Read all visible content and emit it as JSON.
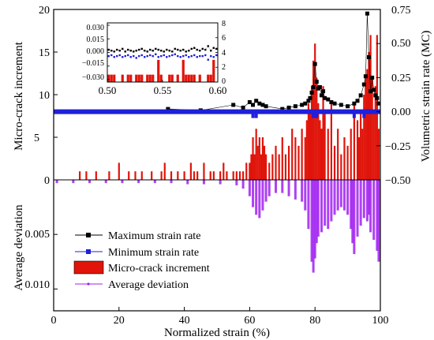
{
  "chart_data": {
    "type": "bar",
    "xlabel": "Normalized strain (%)",
    "x_ticks": [
      "0",
      "20",
      "40",
      "60",
      "80",
      "100"
    ],
    "xlim": [
      0,
      100
    ],
    "upper_left_axis": {
      "label": "Micro-crack increment",
      "ylim": [
        0,
        20
      ],
      "ticks": [
        "0",
        "5",
        "10",
        "15",
        "20"
      ]
    },
    "upper_right_axis": {
      "label": "Volumetric strain rate (MC)",
      "ylim": [
        -0.5,
        0.75
      ],
      "ticks": [
        "−0.50",
        "−0.25",
        "0.00",
        "0.25",
        "0.50",
        "0.75"
      ]
    },
    "lower_left_axis": {
      "label": "Average deviation",
      "ylim": [
        0,
        0.012
      ],
      "ticks": [
        "0.005",
        "0.010"
      ]
    },
    "inset": {
      "xlim": [
        0.5,
        0.6
      ],
      "x_ticks": [
        "0.50",
        "0.55",
        "0.60"
      ],
      "left_ticks": [
        "−0.030",
        "−0.015",
        "0.000",
        "0.015",
        "0.030"
      ],
      "right_ticks": [
        "0",
        "2",
        "4",
        "6",
        "8"
      ],
      "max_rate": [
        0.003,
        0.002,
        0.001,
        0.003,
        0.002,
        0.004,
        0.001,
        0.003,
        0.002,
        0.001,
        0.002,
        0.003,
        0.004,
        0.002,
        0.001,
        0.003,
        0.002,
        0.004,
        0.003,
        0.002,
        0.001,
        0.003,
        0.002,
        0.001,
        0.004,
        0.003,
        0.002,
        0.003,
        0.001,
        0.002,
        0.004,
        0.005,
        0.003,
        0.002,
        0.004,
        0.003,
        0.007,
        0.002,
        0.005,
        0.004
      ],
      "min_rate": [
        -0.004,
        -0.003,
        -0.005,
        -0.004,
        -0.003,
        -0.005,
        -0.004,
        -0.003,
        -0.005,
        -0.004,
        -0.006,
        -0.004,
        -0.003,
        -0.005,
        -0.004,
        -0.003,
        -0.004,
        -0.002,
        -0.005,
        -0.004,
        -0.003,
        -0.005,
        -0.004,
        -0.003,
        -0.002,
        -0.004,
        -0.005,
        -0.004,
        -0.003,
        -0.005,
        -0.004,
        -0.003,
        -0.005,
        -0.004,
        -0.004,
        -0.003,
        -0.008,
        -0.004,
        -0.005,
        -0.003
      ],
      "increments": [
        1,
        1,
        1,
        0,
        0,
        1,
        0,
        1,
        1,
        0,
        1,
        1,
        1,
        0,
        1,
        1,
        1,
        0,
        3,
        1,
        0,
        0,
        1,
        1,
        0,
        1,
        0,
        3,
        1,
        1,
        1,
        1,
        0,
        1,
        0,
        0,
        1,
        1,
        3,
        0
      ]
    },
    "series": [
      {
        "name": "Maximum strain rate",
        "color": "#000000",
        "marker": "square",
        "x": [
          35,
          45,
          55,
          58,
          60,
          61,
          62,
          63,
          64,
          65,
          70,
          72,
          74,
          76,
          77,
          78,
          78.5,
          79,
          79.5,
          80,
          80.5,
          81,
          81.5,
          82,
          82.5,
          83,
          84,
          85,
          86,
          88,
          90,
          92,
          93,
          94,
          95,
          95.5,
          96,
          96.5,
          97,
          97.5,
          98,
          98.5,
          99,
          99.5
        ],
        "y": [
          0.02,
          0.01,
          0.05,
          0.03,
          0.07,
          0.05,
          0.08,
          0.06,
          0.05,
          0.04,
          0.02,
          0.03,
          0.04,
          0.05,
          0.06,
          0.08,
          0.1,
          0.14,
          0.18,
          0.35,
          0.22,
          0.17,
          0.18,
          0.12,
          0.15,
          0.1,
          0.09,
          0.07,
          0.06,
          0.05,
          0.04,
          0.06,
          0.08,
          0.12,
          0.2,
          0.26,
          0.72,
          0.4,
          0.15,
          0.25,
          0.16,
          0.12,
          0.1,
          0.06
        ]
      },
      {
        "name": "Minimum strain rate",
        "color": "#1f1fdc",
        "marker": "square",
        "x": [],
        "y": []
      },
      {
        "name": "Micro-crack increment",
        "color": "#e0140a",
        "x": [
          8,
          10,
          13,
          17,
          20,
          23,
          25,
          27,
          30,
          33,
          34,
          36,
          38,
          40,
          42,
          43,
          44,
          46,
          48,
          49,
          51,
          52,
          53,
          55,
          56,
          57,
          58,
          59,
          60,
          60.5,
          61,
          61.5,
          62,
          62.5,
          63,
          63.5,
          64,
          64.5,
          65,
          66,
          67,
          68,
          69,
          70,
          71,
          72,
          73,
          74,
          75,
          76,
          77,
          77.5,
          78,
          78.5,
          79,
          79.5,
          80,
          80.5,
          81,
          81.5,
          82,
          82.5,
          83,
          84,
          85,
          86,
          87,
          88,
          89,
          90,
          91,
          92,
          93,
          93.5,
          94,
          94.5,
          95,
          95.5,
          96,
          96.5,
          97,
          97.5,
          98,
          98.5,
          99,
          99.5
        ],
        "y": [
          1,
          1,
          1,
          1,
          2,
          1,
          1,
          1,
          1,
          1,
          2,
          1,
          1,
          1,
          2,
          1,
          1,
          2,
          1,
          1,
          1,
          2,
          1,
          1,
          1,
          1,
          1,
          2,
          2,
          3,
          5,
          3,
          6,
          4,
          5,
          3,
          5,
          4,
          3,
          2,
          3,
          4,
          3,
          5,
          3,
          4,
          6,
          5,
          4,
          6,
          5,
          7,
          9,
          8,
          11,
          14,
          16,
          12,
          9,
          7,
          6,
          11,
          8,
          6,
          9,
          4,
          6,
          3,
          5,
          4,
          6,
          9,
          7,
          5,
          8,
          6,
          10,
          12,
          13,
          15,
          17,
          12,
          8,
          11,
          17,
          6
        ]
      },
      {
        "name": "Average deviation",
        "color": "#a020f0",
        "x": [
          1,
          6,
          11,
          16,
          21,
          26,
          31,
          36,
          41,
          46,
          51,
          56,
          58,
          60,
          61,
          62,
          63,
          64,
          65,
          66,
          68,
          70,
          72,
          74,
          76,
          77,
          78,
          79,
          79.5,
          80,
          80.5,
          81,
          82,
          83,
          84,
          85,
          86,
          87,
          88,
          89,
          90,
          91,
          91.5,
          92,
          93,
          94,
          95,
          96,
          96.5,
          97,
          98,
          99,
          99.5
        ],
        "y": [
          0.0003,
          0.0003,
          0.0003,
          0.0003,
          0.0003,
          0.0003,
          0.0003,
          0.0003,
          0.0004,
          0.0004,
          0.0004,
          0.0005,
          0.0008,
          0.0015,
          0.0025,
          0.0032,
          0.0035,
          0.0028,
          0.002,
          0.0015,
          0.0012,
          0.0012,
          0.0015,
          0.0018,
          0.002,
          0.0028,
          0.0045,
          0.0075,
          0.0085,
          0.0072,
          0.0058,
          0.0052,
          0.0048,
          0.0042,
          0.0045,
          0.0038,
          0.0032,
          0.0028,
          0.0025,
          0.0028,
          0.0032,
          0.0045,
          0.0058,
          0.0068,
          0.0052,
          0.0042,
          0.0035,
          0.0038,
          0.0032,
          0.0048,
          0.0055,
          0.0065,
          0.0075
        ]
      }
    ]
  }
}
